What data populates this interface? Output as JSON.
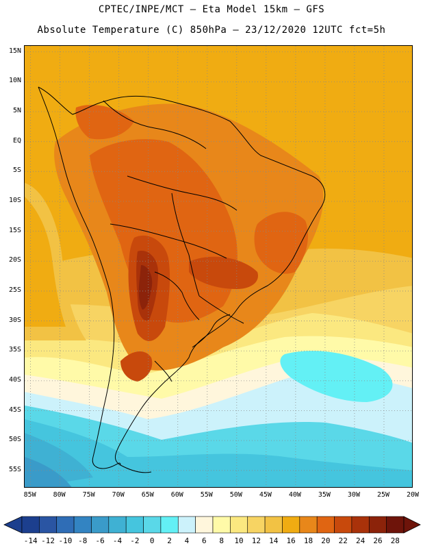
{
  "header": {
    "line1": "CPTEC/INPE/MCT –  Eta Model 15km – GFS",
    "line2": "Absolute Temperature (C) 850hPa – 23/12/2020 12UTC fct=5h"
  },
  "map": {
    "lat_labels": [
      "15N",
      "10N",
      "5N",
      "EQ",
      "5S",
      "10S",
      "15S",
      "20S",
      "25S",
      "30S",
      "35S",
      "40S",
      "45S",
      "50S",
      "55S"
    ],
    "lon_labels": [
      "85W",
      "80W",
      "75W",
      "70W",
      "65W",
      "60W",
      "55W",
      "50W",
      "45W",
      "40W",
      "35W",
      "30W",
      "25W",
      "20W"
    ],
    "lat_values": [
      15,
      10,
      5,
      0,
      -5,
      -10,
      -15,
      -20,
      -25,
      -30,
      -35,
      -40,
      -45,
      -50,
      -55
    ],
    "lon_values": [
      -85,
      -80,
      -75,
      -70,
      -65,
      -60,
      -55,
      -50,
      -45,
      -40,
      -35,
      -30,
      -25,
      -20
    ],
    "lat_range": [
      -58,
      16
    ],
    "lon_range": [
      -86,
      -20
    ]
  },
  "colorbar": {
    "labels": [
      "-14",
      "-12",
      "-10",
      "-8",
      "-6",
      "-4",
      "-2",
      "0",
      "2",
      "4",
      "6",
      "8",
      "10",
      "12",
      "14",
      "16",
      "18",
      "20",
      "22",
      "24",
      "26",
      "28"
    ],
    "colors": [
      "#1c3f8e",
      "#2a55a3",
      "#2f6db6",
      "#3384c2",
      "#3a9bc9",
      "#3fb1d3",
      "#45c5de",
      "#5ad8e8",
      "#63f0f5",
      "#ccf2fb",
      "#fff6dc",
      "#fffaa8",
      "#fbe880",
      "#f7d463",
      "#f2c244",
      "#f0ac12",
      "#e8871a",
      "#e06512",
      "#c8490c",
      "#a9320a",
      "#8c230a",
      "#6e140a"
    ]
  }
}
